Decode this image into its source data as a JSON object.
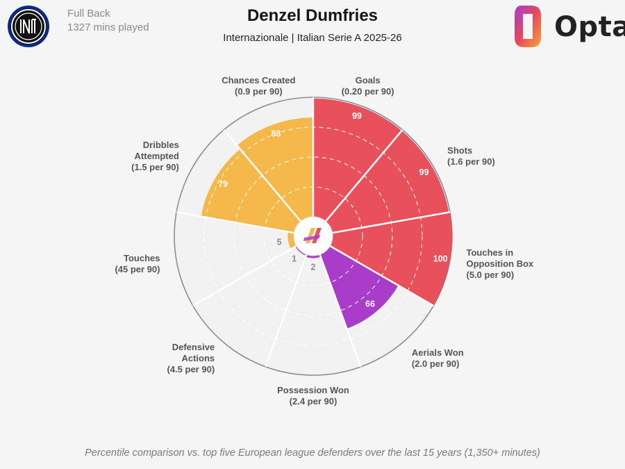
{
  "header": {
    "position": "Full Back",
    "minutes": "1327 mins played",
    "title": "Denzel Dumfries",
    "subtitle": "Internazionale | Italian Serie A 2025-26",
    "brand": "Opta"
  },
  "footer": "Percentile comparison vs. top five European league defenders over the last 15 years (1,350+ minutes)",
  "colors": {
    "attacking": "#e8505b",
    "possession": "#f5b84a",
    "defending": "#a93cc9",
    "background": "#f5f5f5"
  },
  "chart_data": {
    "type": "polar-bar",
    "scale_max": 100,
    "metrics": [
      {
        "name": "Goals",
        "per90": "(0.20 per 90)",
        "percentile": 99,
        "group": "attacking"
      },
      {
        "name": "Shots",
        "per90": "(1.6 per 90)",
        "percentile": 99,
        "group": "attacking"
      },
      {
        "name": "Touches in Opposition Box",
        "per90": "(5.0 per 90)",
        "percentile": 100,
        "group": "attacking"
      },
      {
        "name": "Aerials Won",
        "per90": "(2.0 per 90)",
        "percentile": 66,
        "group": "defending"
      },
      {
        "name": "Possession Won",
        "per90": "(2.4 per 90)",
        "percentile": 2,
        "group": "defending"
      },
      {
        "name": "Defensive Actions",
        "per90": "(4.5 per 90)",
        "percentile": 1,
        "group": "defending"
      },
      {
        "name": "Touches",
        "per90": "(45 per 90)",
        "percentile": 5,
        "group": "possession"
      },
      {
        "name": "Dribbles Attempted",
        "per90": "(1.5 per 90)",
        "percentile": 79,
        "group": "possession"
      },
      {
        "name": "Chances Created",
        "per90": "(0.9 per 90)",
        "percentile": 83,
        "group": "possession"
      }
    ]
  }
}
